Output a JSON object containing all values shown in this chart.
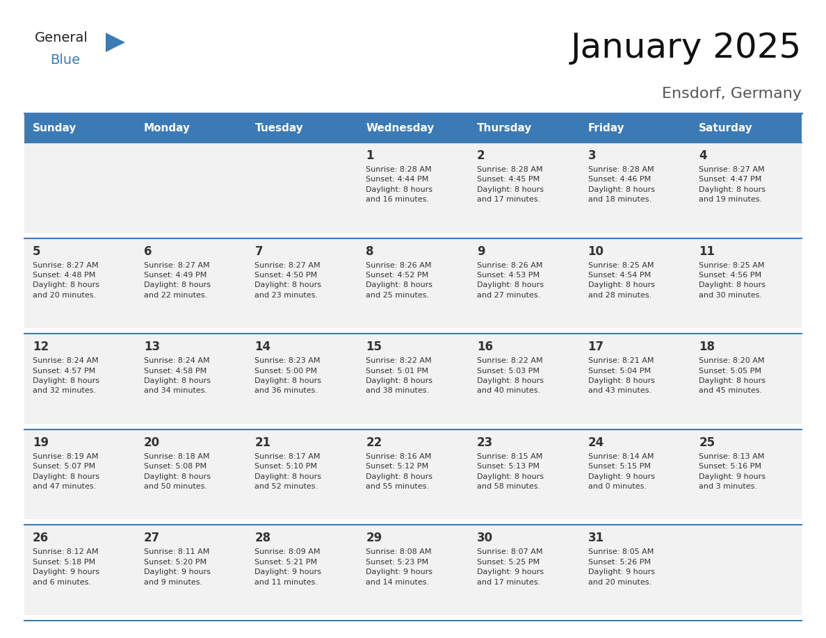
{
  "title": "January 2025",
  "subtitle": "Ensdorf, Germany",
  "days_of_week": [
    "Sunday",
    "Monday",
    "Tuesday",
    "Wednesday",
    "Thursday",
    "Friday",
    "Saturday"
  ],
  "header_bg": "#3c7ab5",
  "header_text": "#ffffff",
  "cell_bg": "#f2f2f2",
  "cell_bg_empty": "#ffffff",
  "cell_text": "#333333",
  "border_color": "#3c7ab5",
  "title_color": "#111111",
  "subtitle_color": "#555555",
  "weeks": [
    [
      {
        "day": "",
        "info": ""
      },
      {
        "day": "",
        "info": ""
      },
      {
        "day": "",
        "info": ""
      },
      {
        "day": "1",
        "info": "Sunrise: 8:28 AM\nSunset: 4:44 PM\nDaylight: 8 hours\nand 16 minutes."
      },
      {
        "day": "2",
        "info": "Sunrise: 8:28 AM\nSunset: 4:45 PM\nDaylight: 8 hours\nand 17 minutes."
      },
      {
        "day": "3",
        "info": "Sunrise: 8:28 AM\nSunset: 4:46 PM\nDaylight: 8 hours\nand 18 minutes."
      },
      {
        "day": "4",
        "info": "Sunrise: 8:27 AM\nSunset: 4:47 PM\nDaylight: 8 hours\nand 19 minutes."
      }
    ],
    [
      {
        "day": "5",
        "info": "Sunrise: 8:27 AM\nSunset: 4:48 PM\nDaylight: 8 hours\nand 20 minutes."
      },
      {
        "day": "6",
        "info": "Sunrise: 8:27 AM\nSunset: 4:49 PM\nDaylight: 8 hours\nand 22 minutes."
      },
      {
        "day": "7",
        "info": "Sunrise: 8:27 AM\nSunset: 4:50 PM\nDaylight: 8 hours\nand 23 minutes."
      },
      {
        "day": "8",
        "info": "Sunrise: 8:26 AM\nSunset: 4:52 PM\nDaylight: 8 hours\nand 25 minutes."
      },
      {
        "day": "9",
        "info": "Sunrise: 8:26 AM\nSunset: 4:53 PM\nDaylight: 8 hours\nand 27 minutes."
      },
      {
        "day": "10",
        "info": "Sunrise: 8:25 AM\nSunset: 4:54 PM\nDaylight: 8 hours\nand 28 minutes."
      },
      {
        "day": "11",
        "info": "Sunrise: 8:25 AM\nSunset: 4:56 PM\nDaylight: 8 hours\nand 30 minutes."
      }
    ],
    [
      {
        "day": "12",
        "info": "Sunrise: 8:24 AM\nSunset: 4:57 PM\nDaylight: 8 hours\nand 32 minutes."
      },
      {
        "day": "13",
        "info": "Sunrise: 8:24 AM\nSunset: 4:58 PM\nDaylight: 8 hours\nand 34 minutes."
      },
      {
        "day": "14",
        "info": "Sunrise: 8:23 AM\nSunset: 5:00 PM\nDaylight: 8 hours\nand 36 minutes."
      },
      {
        "day": "15",
        "info": "Sunrise: 8:22 AM\nSunset: 5:01 PM\nDaylight: 8 hours\nand 38 minutes."
      },
      {
        "day": "16",
        "info": "Sunrise: 8:22 AM\nSunset: 5:03 PM\nDaylight: 8 hours\nand 40 minutes."
      },
      {
        "day": "17",
        "info": "Sunrise: 8:21 AM\nSunset: 5:04 PM\nDaylight: 8 hours\nand 43 minutes."
      },
      {
        "day": "18",
        "info": "Sunrise: 8:20 AM\nSunset: 5:05 PM\nDaylight: 8 hours\nand 45 minutes."
      }
    ],
    [
      {
        "day": "19",
        "info": "Sunrise: 8:19 AM\nSunset: 5:07 PM\nDaylight: 8 hours\nand 47 minutes."
      },
      {
        "day": "20",
        "info": "Sunrise: 8:18 AM\nSunset: 5:08 PM\nDaylight: 8 hours\nand 50 minutes."
      },
      {
        "day": "21",
        "info": "Sunrise: 8:17 AM\nSunset: 5:10 PM\nDaylight: 8 hours\nand 52 minutes."
      },
      {
        "day": "22",
        "info": "Sunrise: 8:16 AM\nSunset: 5:12 PM\nDaylight: 8 hours\nand 55 minutes."
      },
      {
        "day": "23",
        "info": "Sunrise: 8:15 AM\nSunset: 5:13 PM\nDaylight: 8 hours\nand 58 minutes."
      },
      {
        "day": "24",
        "info": "Sunrise: 8:14 AM\nSunset: 5:15 PM\nDaylight: 9 hours\nand 0 minutes."
      },
      {
        "day": "25",
        "info": "Sunrise: 8:13 AM\nSunset: 5:16 PM\nDaylight: 9 hours\nand 3 minutes."
      }
    ],
    [
      {
        "day": "26",
        "info": "Sunrise: 8:12 AM\nSunset: 5:18 PM\nDaylight: 9 hours\nand 6 minutes."
      },
      {
        "day": "27",
        "info": "Sunrise: 8:11 AM\nSunset: 5:20 PM\nDaylight: 9 hours\nand 9 minutes."
      },
      {
        "day": "28",
        "info": "Sunrise: 8:09 AM\nSunset: 5:21 PM\nDaylight: 9 hours\nand 11 minutes."
      },
      {
        "day": "29",
        "info": "Sunrise: 8:08 AM\nSunset: 5:23 PM\nDaylight: 9 hours\nand 14 minutes."
      },
      {
        "day": "30",
        "info": "Sunrise: 8:07 AM\nSunset: 5:25 PM\nDaylight: 9 hours\nand 17 minutes."
      },
      {
        "day": "31",
        "info": "Sunrise: 8:05 AM\nSunset: 5:26 PM\nDaylight: 9 hours\nand 20 minutes."
      },
      {
        "day": "",
        "info": ""
      }
    ]
  ]
}
